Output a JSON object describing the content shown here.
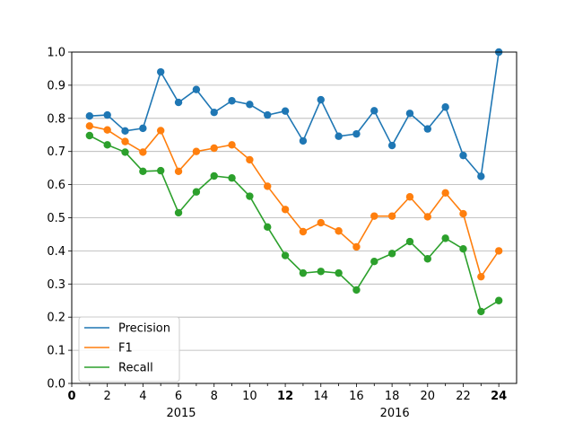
{
  "chart_data": {
    "type": "line",
    "x": [
      1,
      2,
      3,
      4,
      5,
      6,
      7,
      8,
      9,
      10,
      11,
      12,
      13,
      14,
      15,
      16,
      17,
      18,
      19,
      20,
      21,
      22,
      23,
      24
    ],
    "xlim": [
      0,
      25
    ],
    "ylim": [
      0,
      1
    ],
    "grid": "horizontal",
    "legend_position": "lower-left",
    "x_ticks": [
      {
        "value": 0,
        "label": "0",
        "bold": true
      },
      {
        "value": 1,
        "label": "",
        "bold": false
      },
      {
        "value": 2,
        "label": "2",
        "bold": false
      },
      {
        "value": 3,
        "label": "",
        "bold": false
      },
      {
        "value": 4,
        "label": "4",
        "bold": false
      },
      {
        "value": 5,
        "label": "",
        "bold": false
      },
      {
        "value": 6,
        "label": "6",
        "bold": false
      },
      {
        "value": 7,
        "label": "",
        "bold": false
      },
      {
        "value": 8,
        "label": "8",
        "bold": false
      },
      {
        "value": 9,
        "label": "",
        "bold": false
      },
      {
        "value": 10,
        "label": "10",
        "bold": false
      },
      {
        "value": 11,
        "label": "",
        "bold": false
      },
      {
        "value": 12,
        "label": "12",
        "bold": true
      },
      {
        "value": 13,
        "label": "",
        "bold": false
      },
      {
        "value": 14,
        "label": "14",
        "bold": false
      },
      {
        "value": 15,
        "label": "",
        "bold": false
      },
      {
        "value": 16,
        "label": "16",
        "bold": false
      },
      {
        "value": 17,
        "label": "",
        "bold": false
      },
      {
        "value": 18,
        "label": "18",
        "bold": false
      },
      {
        "value": 19,
        "label": "",
        "bold": false
      },
      {
        "value": 20,
        "label": "20",
        "bold": false
      },
      {
        "value": 21,
        "label": "",
        "bold": false
      },
      {
        "value": 22,
        "label": "22",
        "bold": false
      },
      {
        "value": 23,
        "label": "",
        "bold": false
      },
      {
        "value": 24,
        "label": "24",
        "bold": true
      }
    ],
    "x_group_labels": [
      {
        "value": 6,
        "label": "2015"
      },
      {
        "value": 18,
        "label": "2016"
      }
    ],
    "y_ticks": [
      0.0,
      0.1,
      0.2,
      0.3,
      0.4,
      0.5,
      0.6,
      0.7,
      0.8,
      0.9,
      1.0
    ],
    "y_tick_labels": [
      "0.0",
      "0.1",
      "0.2",
      "0.3",
      "0.4",
      "0.5",
      "0.6",
      "0.7",
      "0.8",
      "0.9",
      "1.0"
    ],
    "series": [
      {
        "name": "Precision",
        "color": "#1f77b4",
        "values": [
          0.807,
          0.81,
          0.762,
          0.77,
          0.94,
          0.848,
          0.887,
          0.818,
          0.853,
          0.842,
          0.81,
          0.822,
          0.732,
          0.856,
          0.746,
          0.753,
          0.823,
          0.718,
          0.815,
          0.768,
          0.834,
          0.688,
          0.625,
          1.0
        ]
      },
      {
        "name": "F1",
        "color": "#ff7f0e",
        "values": [
          0.777,
          0.765,
          0.73,
          0.698,
          0.763,
          0.64,
          0.7,
          0.71,
          0.72,
          0.675,
          0.595,
          0.525,
          0.458,
          0.485,
          0.46,
          0.412,
          0.505,
          0.505,
          0.563,
          0.503,
          0.575,
          0.512,
          0.322,
          0.4
        ]
      },
      {
        "name": "Recall",
        "color": "#2ca02c",
        "values": [
          0.748,
          0.72,
          0.698,
          0.64,
          0.642,
          0.515,
          0.578,
          0.626,
          0.62,
          0.565,
          0.472,
          0.386,
          0.333,
          0.338,
          0.333,
          0.282,
          0.368,
          0.392,
          0.428,
          0.376,
          0.438,
          0.406,
          0.217,
          0.25
        ]
      }
    ]
  }
}
